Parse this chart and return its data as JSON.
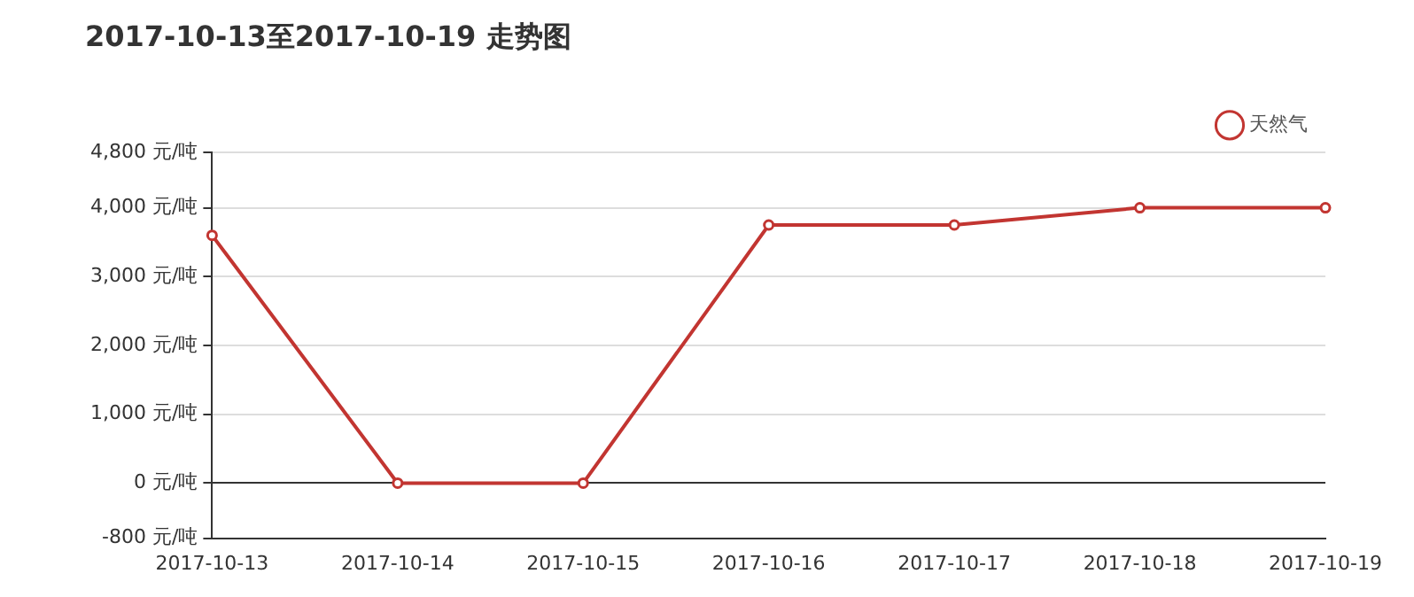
{
  "chart_data": {
    "type": "line",
    "title": "2017-10-13至2017-10-19 走势图",
    "categories": [
      "2017-10-13",
      "2017-10-14",
      "2017-10-15",
      "2017-10-16",
      "2017-10-17",
      "2017-10-18",
      "2017-10-19"
    ],
    "series": [
      {
        "name": "天然气",
        "color": "#c23531",
        "values": [
          3600,
          0,
          0,
          3750,
          3750,
          4000,
          4000
        ]
      }
    ],
    "ylim": [
      -800,
      4800
    ],
    "yticks": [
      {
        "value": -800,
        "label": "-800 元/吨"
      },
      {
        "value": 0,
        "label": "0 元/吨"
      },
      {
        "value": 1000,
        "label": "1,000 元/吨"
      },
      {
        "value": 2000,
        "label": "2,000 元/吨"
      },
      {
        "value": 3000,
        "label": "3,000 元/吨"
      },
      {
        "value": 4000,
        "label": "4,000 元/吨"
      },
      {
        "value": 4800,
        "label": "4,800 元/吨"
      }
    ],
    "grid": "y",
    "legend": "top right",
    "marker": "circle",
    "line_style": "solid"
  }
}
